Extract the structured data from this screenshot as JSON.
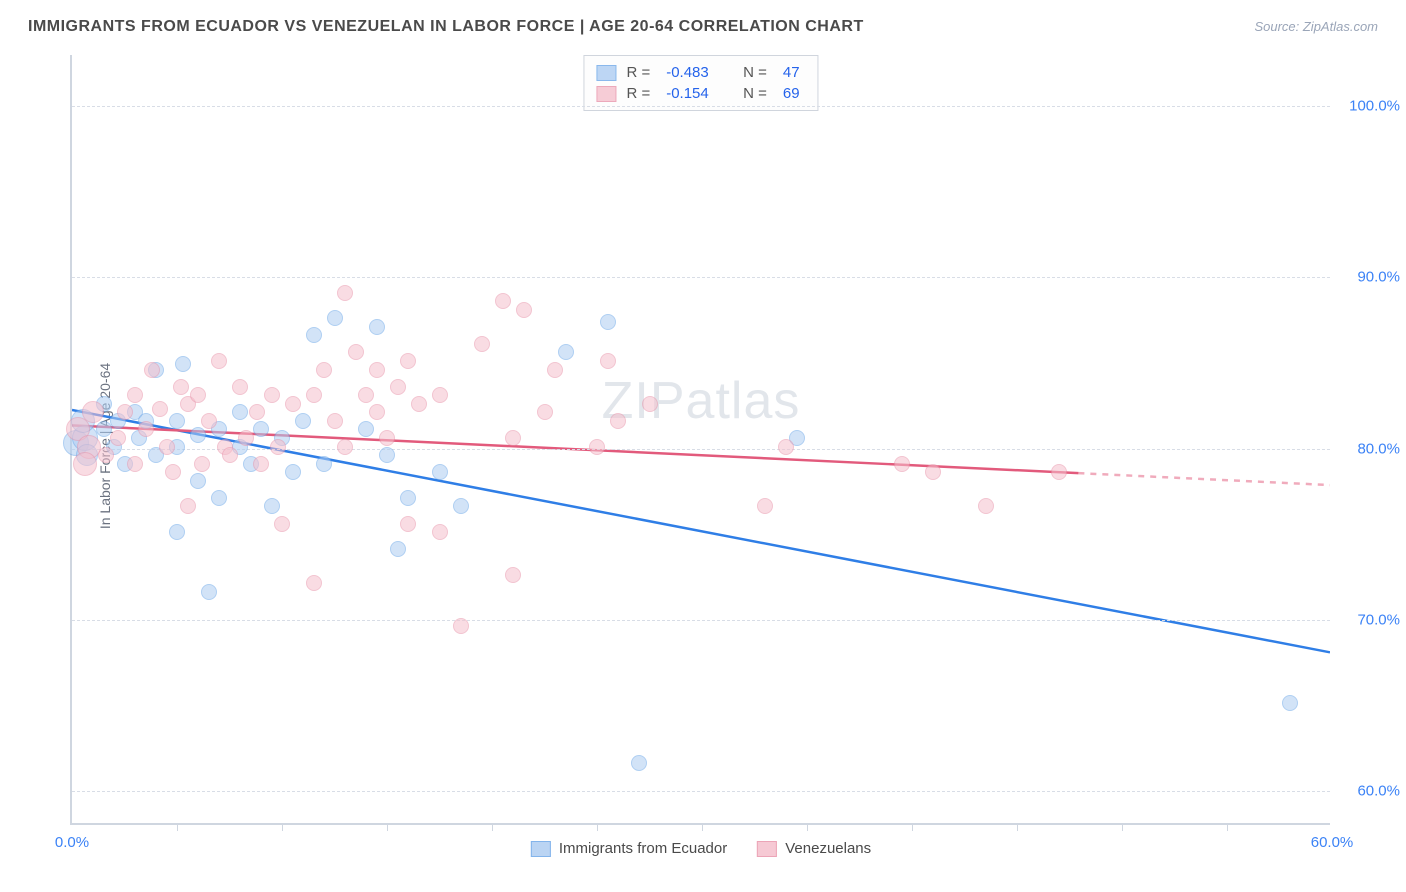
{
  "title": "IMMIGRANTS FROM ECUADOR VS VENEZUELAN IN LABOR FORCE | AGE 20-64 CORRELATION CHART",
  "source_label": "Source: ZipAtlas.com",
  "watermark": "ZIPatlas",
  "ylabel": "In Labor Force | Age 20-64",
  "chart": {
    "type": "scatter-with-trend",
    "xlim": [
      0,
      60
    ],
    "ylim": [
      58,
      103
    ],
    "x_ticks_labeled": [
      0,
      60
    ],
    "x_ticks_minor": [
      5,
      10,
      15,
      20,
      25,
      30,
      35,
      40,
      45,
      50,
      55
    ],
    "y_ticks": [
      60,
      70,
      80,
      90,
      100
    ],
    "grid_color": "#d8dde6",
    "axis_color": "#cfd6e0",
    "background_color": "#ffffff",
    "tick_label_color": "#3b82f6",
    "tick_label_fontsize": 15,
    "axis_label_color": "#6b7280",
    "axis_label_fontsize": 14,
    "point_radius": 8,
    "point_radius_cluster": 11,
    "series": [
      {
        "name": "Immigrants from Ecuador",
        "fill_color": "#aecdf2",
        "stroke_color": "#6ea8e8",
        "fill_opacity": 0.55,
        "line_color": "#2f7ee6",
        "line_width": 2.5,
        "R": "-0.483",
        "N": "47",
        "trend": {
          "x1": 0,
          "y1": 82.2,
          "x2": 60,
          "y2": 68.0,
          "dash_after_x": null
        },
        "points": [
          {
            "x": 0.2,
            "y": 80.2,
            "r": 13
          },
          {
            "x": 0.6,
            "y": 80.5,
            "r": 13
          },
          {
            "x": 0.5,
            "y": 81.5,
            "r": 12
          },
          {
            "x": 0.7,
            "y": 79.5,
            "r": 11
          },
          {
            "x": 1.5,
            "y": 81.0
          },
          {
            "x": 1.5,
            "y": 82.5
          },
          {
            "x": 2.0,
            "y": 80.0
          },
          {
            "x": 2.2,
            "y": 81.5
          },
          {
            "x": 2.5,
            "y": 79.0
          },
          {
            "x": 3.0,
            "y": 82.0
          },
          {
            "x": 3.2,
            "y": 80.5
          },
          {
            "x": 3.5,
            "y": 81.5
          },
          {
            "x": 4.0,
            "y": 84.5
          },
          {
            "x": 4.0,
            "y": 79.5
          },
          {
            "x": 5.0,
            "y": 81.5
          },
          {
            "x": 5.0,
            "y": 80.0
          },
          {
            "x": 5.0,
            "y": 75.0
          },
          {
            "x": 5.3,
            "y": 84.8
          },
          {
            "x": 6.0,
            "y": 78.0
          },
          {
            "x": 6.0,
            "y": 80.7
          },
          {
            "x": 6.5,
            "y": 71.5
          },
          {
            "x": 7.0,
            "y": 81.0
          },
          {
            "x": 7.0,
            "y": 77.0
          },
          {
            "x": 8.0,
            "y": 82.0
          },
          {
            "x": 8.0,
            "y": 80.0
          },
          {
            "x": 8.5,
            "y": 79.0
          },
          {
            "x": 9.0,
            "y": 81.0
          },
          {
            "x": 9.5,
            "y": 76.5
          },
          {
            "x": 10.0,
            "y": 80.5
          },
          {
            "x": 10.5,
            "y": 78.5
          },
          {
            "x": 11.0,
            "y": 81.5
          },
          {
            "x": 11.5,
            "y": 86.5
          },
          {
            "x": 12.0,
            "y": 79.0
          },
          {
            "x": 12.5,
            "y": 87.5
          },
          {
            "x": 14.0,
            "y": 81.0
          },
          {
            "x": 14.5,
            "y": 87.0
          },
          {
            "x": 15.0,
            "y": 79.5
          },
          {
            "x": 15.5,
            "y": 74.0
          },
          {
            "x": 16.0,
            "y": 77.0
          },
          {
            "x": 17.5,
            "y": 78.5
          },
          {
            "x": 18.5,
            "y": 76.5
          },
          {
            "x": 23.5,
            "y": 85.5
          },
          {
            "x": 25.5,
            "y": 87.3
          },
          {
            "x": 27.0,
            "y": 61.5
          },
          {
            "x": 34.5,
            "y": 80.5
          },
          {
            "x": 58.0,
            "y": 65.0
          }
        ]
      },
      {
        "name": "Venezuelans",
        "fill_color": "#f5c0cd",
        "stroke_color": "#e995ab",
        "fill_opacity": 0.55,
        "line_color": "#e25a7c",
        "line_width": 2.5,
        "R": "-0.154",
        "N": "69",
        "trend": {
          "x1": 0,
          "y1": 81.3,
          "x2": 60,
          "y2": 77.8,
          "dash_after_x": 48
        },
        "points": [
          {
            "x": 0.3,
            "y": 81.0,
            "r": 12
          },
          {
            "x": 0.8,
            "y": 80.0,
            "r": 12
          },
          {
            "x": 0.6,
            "y": 79.0,
            "r": 12
          },
          {
            "x": 1.0,
            "y": 82.0,
            "r": 11
          },
          {
            "x": 1.6,
            "y": 79.5
          },
          {
            "x": 2.2,
            "y": 80.5
          },
          {
            "x": 2.5,
            "y": 82.0
          },
          {
            "x": 3.0,
            "y": 83.0
          },
          {
            "x": 3.0,
            "y": 79.0
          },
          {
            "x": 3.5,
            "y": 81.0
          },
          {
            "x": 3.8,
            "y": 84.5
          },
          {
            "x": 4.2,
            "y": 82.2
          },
          {
            "x": 4.5,
            "y": 80.0
          },
          {
            "x": 4.8,
            "y": 78.5
          },
          {
            "x": 5.2,
            "y": 83.5
          },
          {
            "x": 5.5,
            "y": 82.5
          },
          {
            "x": 5.5,
            "y": 76.5
          },
          {
            "x": 6.0,
            "y": 83.0
          },
          {
            "x": 6.2,
            "y": 79.0
          },
          {
            "x": 6.5,
            "y": 81.5
          },
          {
            "x": 7.0,
            "y": 85.0
          },
          {
            "x": 7.3,
            "y": 80.0
          },
          {
            "x": 7.5,
            "y": 79.5
          },
          {
            "x": 8.0,
            "y": 83.5
          },
          {
            "x": 8.3,
            "y": 80.5
          },
          {
            "x": 8.8,
            "y": 82.0
          },
          {
            "x": 9.0,
            "y": 79.0
          },
          {
            "x": 9.5,
            "y": 83.0
          },
          {
            "x": 9.8,
            "y": 80.0
          },
          {
            "x": 10.0,
            "y": 75.5
          },
          {
            "x": 10.5,
            "y": 82.5
          },
          {
            "x": 11.5,
            "y": 83.0
          },
          {
            "x": 11.5,
            "y": 72.0
          },
          {
            "x": 12.0,
            "y": 84.5
          },
          {
            "x": 12.5,
            "y": 81.5
          },
          {
            "x": 13.0,
            "y": 89.0
          },
          {
            "x": 13.0,
            "y": 80.0
          },
          {
            "x": 13.5,
            "y": 85.5
          },
          {
            "x": 14.0,
            "y": 83.0
          },
          {
            "x": 14.5,
            "y": 82.0
          },
          {
            "x": 14.5,
            "y": 84.5
          },
          {
            "x": 15.0,
            "y": 80.5
          },
          {
            "x": 15.5,
            "y": 83.5
          },
          {
            "x": 16.0,
            "y": 85.0
          },
          {
            "x": 16.0,
            "y": 75.5
          },
          {
            "x": 16.5,
            "y": 82.5
          },
          {
            "x": 17.5,
            "y": 83.0
          },
          {
            "x": 17.5,
            "y": 75.0
          },
          {
            "x": 18.5,
            "y": 69.5
          },
          {
            "x": 19.5,
            "y": 86.0
          },
          {
            "x": 20.5,
            "y": 88.5
          },
          {
            "x": 21.0,
            "y": 80.5
          },
          {
            "x": 21.0,
            "y": 72.5
          },
          {
            "x": 21.5,
            "y": 88.0
          },
          {
            "x": 22.5,
            "y": 82.0
          },
          {
            "x": 23.0,
            "y": 84.5
          },
          {
            "x": 25.0,
            "y": 80.0
          },
          {
            "x": 25.5,
            "y": 85.0
          },
          {
            "x": 26.0,
            "y": 81.5
          },
          {
            "x": 27.5,
            "y": 82.5
          },
          {
            "x": 33.0,
            "y": 76.5
          },
          {
            "x": 34.0,
            "y": 80.0
          },
          {
            "x": 39.5,
            "y": 79.0
          },
          {
            "x": 41.0,
            "y": 78.5
          },
          {
            "x": 43.5,
            "y": 76.5
          },
          {
            "x": 47.0,
            "y": 78.5
          }
        ]
      }
    ]
  },
  "legend_top": {
    "R_label": "R =",
    "N_label": "N ="
  },
  "x_tick_format_suffix": "%",
  "y_tick_format_suffix": "%"
}
